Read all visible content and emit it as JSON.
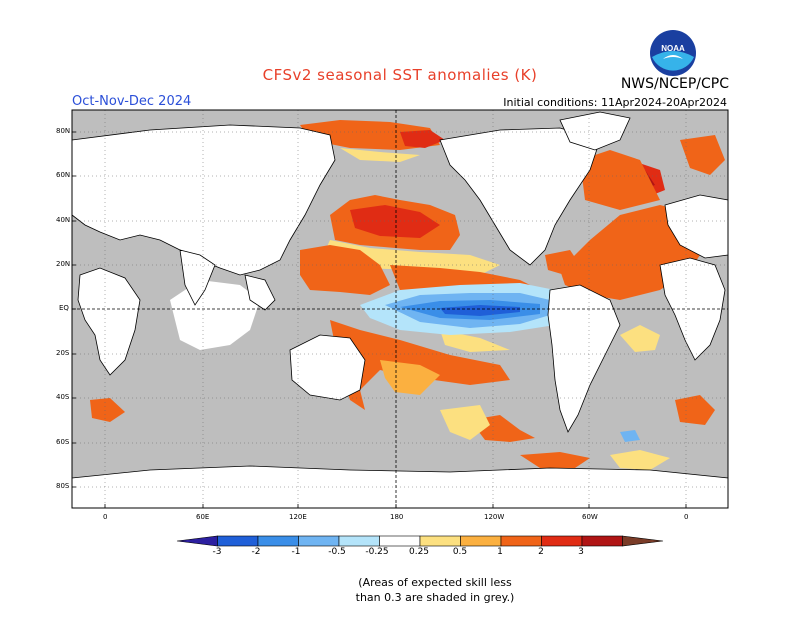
{
  "header": {
    "title": "CFSv2 seasonal SST anomalies (K)",
    "season": "Oct-Nov-Dec 2024",
    "initial_conditions": "Initial conditions: 11Apr2024-20Apr2024",
    "agency": "NWS/NCEP/CPC",
    "logo_text": "NOAA"
  },
  "map": {
    "lat_labels": [
      "80N",
      "60N",
      "40N",
      "20N",
      "EQ",
      "20S",
      "40S",
      "60S",
      "80S"
    ],
    "lon_labels": [
      "0",
      "60E",
      "120E",
      "180",
      "120W",
      "60W",
      "0"
    ],
    "land_color": "#ffffff",
    "ocean_fill_color": "#bebebe"
  },
  "legend": {
    "tick_labels": [
      "-3",
      "-2",
      "-1",
      "-0.5",
      "-0.25",
      "0.25",
      "0.5",
      "1",
      "2",
      "3"
    ],
    "colors": [
      "#2c1fa0",
      "#1f5fd8",
      "#3a8ee8",
      "#6fb4f2",
      "#b4e4fa",
      "#ffffff",
      "#fce080",
      "#fbb040",
      "#f06418",
      "#e02c14",
      "#b01414",
      "#7a3c28"
    ]
  },
  "note": {
    "line1": "(Areas of expected skill less",
    "line2": "than 0.3 are shaded in grey.)"
  }
}
